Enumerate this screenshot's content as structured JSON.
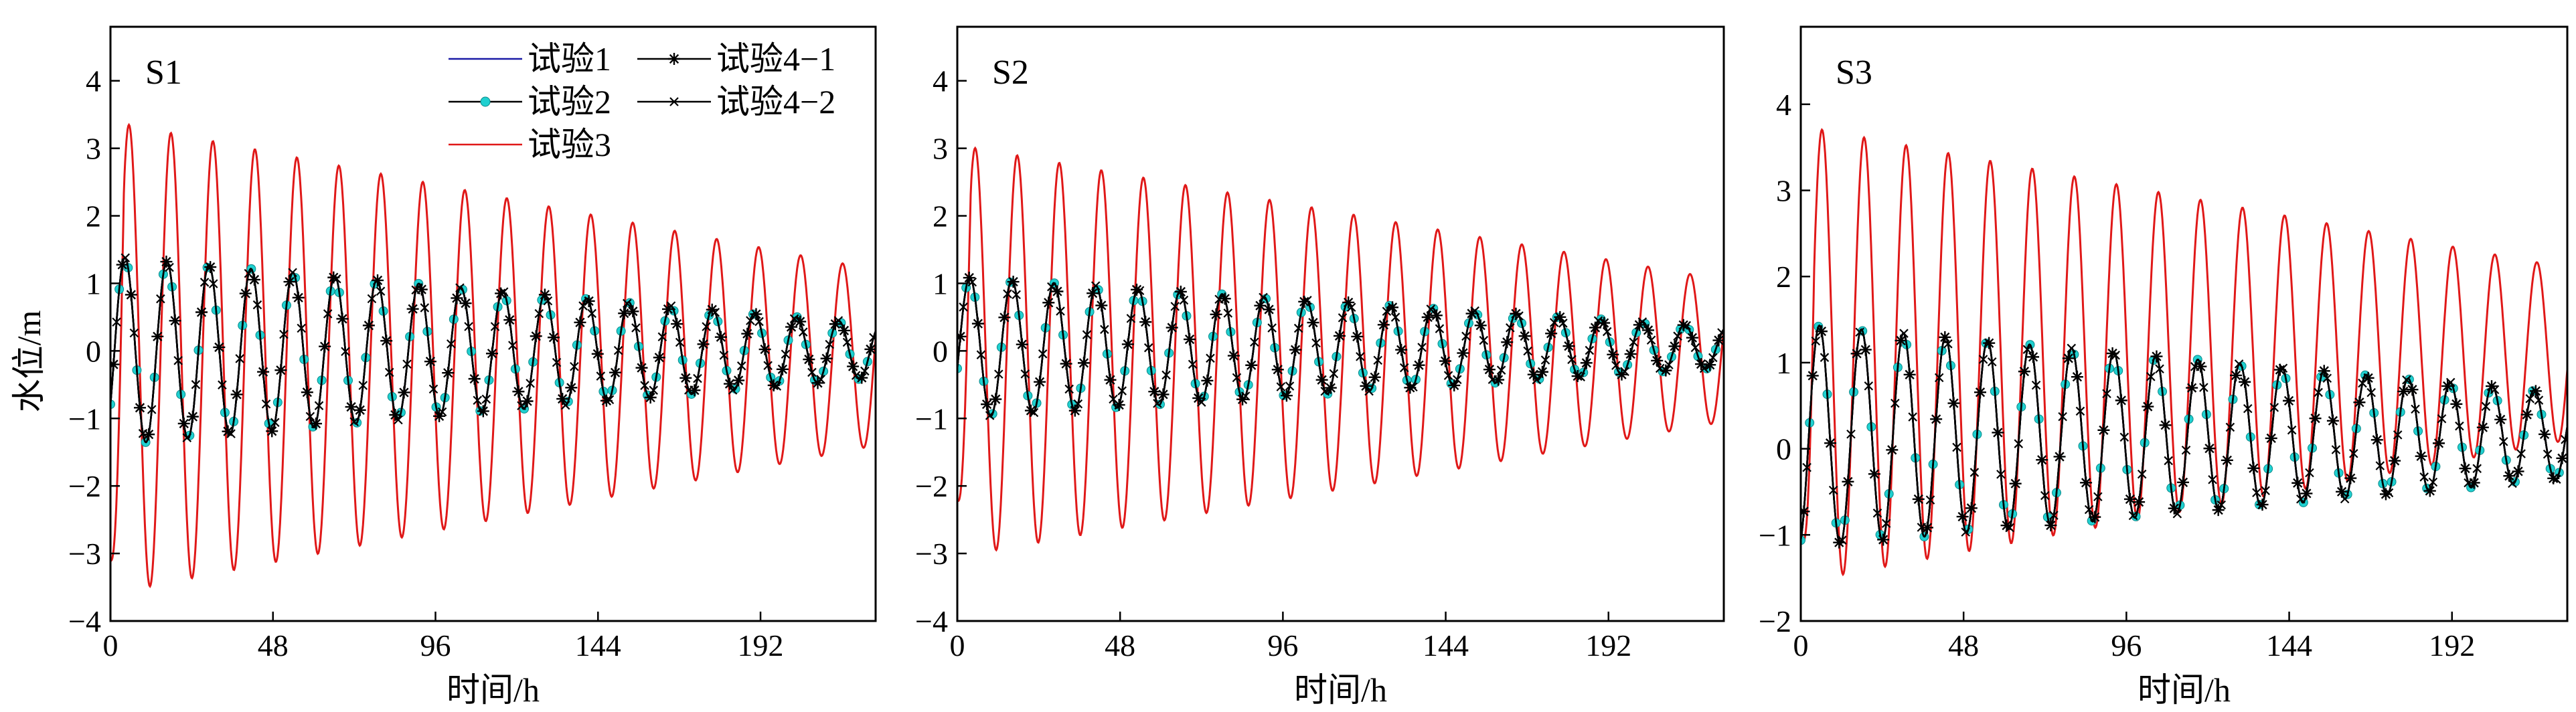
{
  "figure": {
    "ylabel": "水位/m",
    "xlabel": "时间/h"
  },
  "colors": {
    "试验1": "#1a1aa6",
    "试验2_line": "#000000",
    "试验2_marker": "#1fd0d0",
    "试验3": "#e01818",
    "试验4-1": "#000000",
    "试验4-2": "#000000"
  },
  "legend": {
    "items": [
      {
        "label": "试验1",
        "style": "line",
        "color": "#1a1aa6"
      },
      {
        "label": "试验4−1",
        "style": "star",
        "color": "#000000"
      },
      {
        "label": "试验2",
        "style": "dot",
        "color": "#1fd0d0"
      },
      {
        "label": "试验4−2",
        "style": "cross",
        "color": "#000000"
      },
      {
        "label": "试验3",
        "style": "line",
        "color": "#e01818"
      }
    ]
  },
  "chart_data": [
    {
      "type": "line",
      "panel": "S1",
      "xlabel": "时间/h",
      "ylabel": "水位/m",
      "xlim": [
        0,
        226
      ],
      "ylim": [
        -4,
        4.8
      ],
      "xticks": [
        0,
        48,
        96,
        144,
        192
      ],
      "yticks": [
        -4,
        -3,
        -2,
        -1,
        0,
        1,
        2,
        3,
        4
      ],
      "period_h": 12.4,
      "series": [
        {
          "name": "试验1",
          "amplitude_start": 1.4,
          "amplitude_end": 0.4,
          "mean": 0.0,
          "phase": -0.6,
          "final_value": 0.4
        },
        {
          "name": "试验2",
          "amplitude_start": 1.4,
          "amplitude_end": 0.4,
          "mean": 0.0,
          "phase": -0.6,
          "final_value": 0.4
        },
        {
          "name": "试验3",
          "amplitude_start": 3.5,
          "amplitude_end": 1.3,
          "mean": -0.1,
          "phase": -1.2,
          "start_value": -3.1
        },
        {
          "name": "试验4-1",
          "amplitude_start": 1.4,
          "amplitude_end": 0.4,
          "mean": 0.0,
          "phase": -0.6,
          "final_value": 0.4
        },
        {
          "name": "试验4-2",
          "amplitude_start": 1.4,
          "amplitude_end": 0.4,
          "mean": 0.0,
          "phase": -0.6,
          "final_value": 0.4
        }
      ]
    },
    {
      "type": "line",
      "panel": "S2",
      "xlabel": "时间/h",
      "ylabel": "",
      "xlim": [
        0,
        226
      ],
      "ylim": [
        -4,
        4.8
      ],
      "xticks": [
        0,
        48,
        96,
        144,
        192
      ],
      "yticks": [
        -4,
        -3,
        -2,
        -1,
        0,
        1,
        2,
        3,
        4
      ],
      "period_h": 12.4,
      "series": [
        {
          "name": "试验1",
          "amplitude_start": 1.05,
          "amplitude_end": 0.3,
          "mean": 0.05,
          "phase": -0.3,
          "final_value": 0.3
        },
        {
          "name": "试验2",
          "amplitude_start": 1.05,
          "amplitude_end": 0.3,
          "mean": 0.05,
          "phase": -0.3,
          "final_value": 0.3
        },
        {
          "name": "试验3",
          "amplitude_start": 3.05,
          "amplitude_end": 1.05,
          "mean": 0.0,
          "phase": -1.1,
          "start_value": -2.2
        },
        {
          "name": "试验4-1",
          "amplitude_start": 1.05,
          "amplitude_end": 0.3,
          "mean": 0.05,
          "phase": -0.3,
          "final_value": 0.3
        },
        {
          "name": "试验4-2",
          "amplitude_start": 1.05,
          "amplitude_end": 0.3,
          "mean": 0.05,
          "phase": -0.3,
          "final_value": 0.3
        }
      ]
    },
    {
      "type": "line",
      "panel": "S3",
      "xlabel": "时间/h",
      "ylabel": "",
      "xlim": [
        0,
        226
      ],
      "ylim": [
        -2,
        4.9
      ],
      "xticks": [
        0,
        48,
        96,
        144,
        192
      ],
      "yticks": [
        -2,
        -1,
        0,
        1,
        2,
        3,
        4
      ],
      "period_h": 12.4,
      "series": [
        {
          "name": "试验1",
          "amplitude_start": 1.3,
          "amplitude_end": 0.5,
          "mean": 0.15,
          "phase": -1.2,
          "final_value": 0.35
        },
        {
          "name": "试验2",
          "amplitude_start": 1.3,
          "amplitude_end": 0.5,
          "mean": 0.15,
          "phase": -1.2,
          "final_value": 0.35
        },
        {
          "name": "试验3",
          "amplitude_start": 2.65,
          "amplitude_end": 1.0,
          "mean": 1.1,
          "phase": -1.6,
          "start_value": -1.0
        },
        {
          "name": "试验4-1",
          "amplitude_start": 1.3,
          "amplitude_end": 0.5,
          "mean": 0.15,
          "phase": -1.2,
          "final_value": 0.35
        },
        {
          "name": "试验4-2",
          "amplitude_start": 1.3,
          "amplitude_end": 0.5,
          "mean": 0.15,
          "phase": -1.2,
          "final_value": 0.35
        }
      ]
    }
  ]
}
